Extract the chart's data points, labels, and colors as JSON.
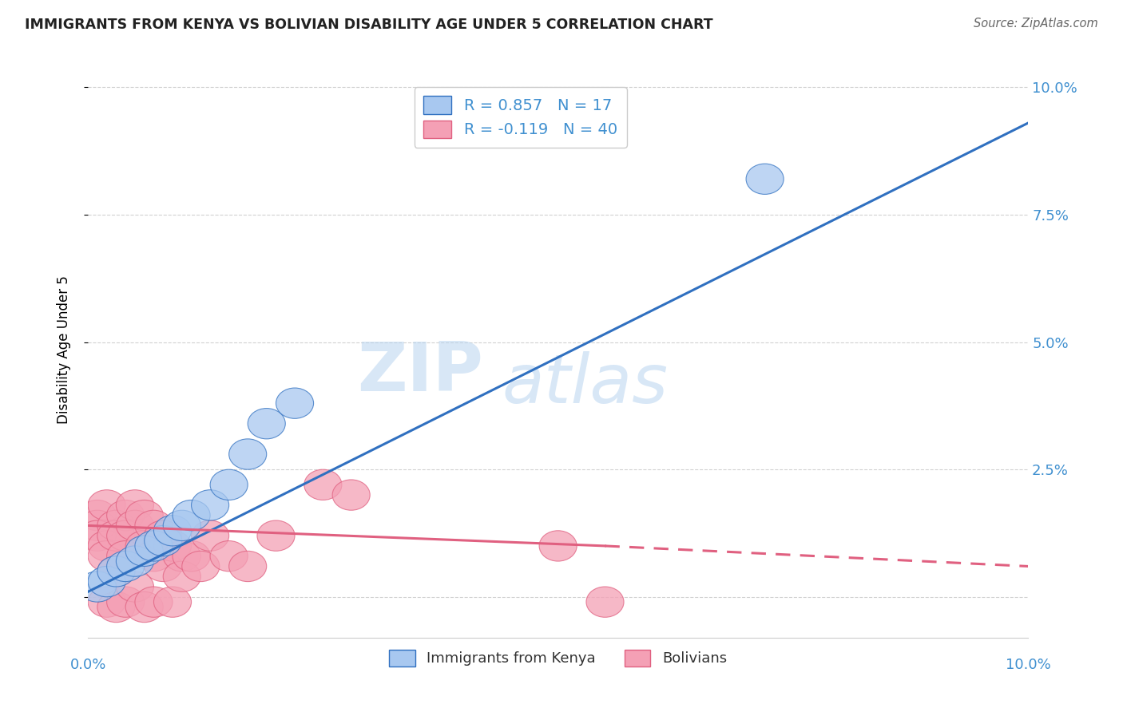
{
  "title": "IMMIGRANTS FROM KENYA VS BOLIVIAN DISABILITY AGE UNDER 5 CORRELATION CHART",
  "source": "Source: ZipAtlas.com",
  "ylabel": "Disability Age Under 5",
  "legend_kenya": "Immigrants from Kenya",
  "legend_bolivia": "Bolivians",
  "r_kenya": 0.857,
  "n_kenya": 17,
  "r_bolivia": -0.119,
  "n_bolivia": 40,
  "xlim": [
    0.0,
    0.1
  ],
  "ylim": [
    -0.008,
    0.105
  ],
  "yticks": [
    0.0,
    0.025,
    0.05,
    0.075,
    0.1
  ],
  "ytick_labels": [
    "",
    "2.5%",
    "5.0%",
    "7.5%",
    "10.0%"
  ],
  "color_kenya": "#A8C8F0",
  "color_bolivia": "#F4A0B5",
  "line_kenya": "#3070C0",
  "line_bolivia": "#E06080",
  "kenya_points": [
    [
      0.001,
      0.002
    ],
    [
      0.002,
      0.003
    ],
    [
      0.003,
      0.005
    ],
    [
      0.004,
      0.006
    ],
    [
      0.005,
      0.007
    ],
    [
      0.006,
      0.009
    ],
    [
      0.007,
      0.01
    ],
    [
      0.008,
      0.011
    ],
    [
      0.009,
      0.013
    ],
    [
      0.01,
      0.014
    ],
    [
      0.011,
      0.016
    ],
    [
      0.013,
      0.018
    ],
    [
      0.015,
      0.022
    ],
    [
      0.017,
      0.028
    ],
    [
      0.019,
      0.034
    ],
    [
      0.022,
      0.038
    ],
    [
      0.072,
      0.082
    ]
  ],
  "bolivia_points": [
    [
      0.001,
      0.016
    ],
    [
      0.001,
      0.014
    ],
    [
      0.001,
      0.012
    ],
    [
      0.002,
      0.018
    ],
    [
      0.002,
      0.01
    ],
    [
      0.002,
      0.008
    ],
    [
      0.002,
      -0.001
    ],
    [
      0.003,
      0.014
    ],
    [
      0.003,
      0.012
    ],
    [
      0.003,
      0.005
    ],
    [
      0.003,
      -0.002
    ],
    [
      0.004,
      0.016
    ],
    [
      0.004,
      0.012
    ],
    [
      0.004,
      0.008
    ],
    [
      0.004,
      -0.001
    ],
    [
      0.005,
      0.018
    ],
    [
      0.005,
      0.014
    ],
    [
      0.005,
      0.002
    ],
    [
      0.006,
      0.016
    ],
    [
      0.006,
      0.01
    ],
    [
      0.006,
      -0.002
    ],
    [
      0.007,
      0.014
    ],
    [
      0.007,
      0.008
    ],
    [
      0.007,
      -0.001
    ],
    [
      0.008,
      0.012
    ],
    [
      0.008,
      0.006
    ],
    [
      0.009,
      0.01
    ],
    [
      0.009,
      -0.001
    ],
    [
      0.01,
      0.008
    ],
    [
      0.01,
      0.004
    ],
    [
      0.011,
      0.008
    ],
    [
      0.012,
      0.006
    ],
    [
      0.013,
      0.012
    ],
    [
      0.015,
      0.008
    ],
    [
      0.017,
      0.006
    ],
    [
      0.02,
      0.012
    ],
    [
      0.025,
      0.022
    ],
    [
      0.028,
      0.02
    ],
    [
      0.05,
      0.01
    ],
    [
      0.055,
      -0.001
    ]
  ],
  "kenya_line": [
    [
      0.0,
      0.001
    ],
    [
      0.1,
      0.093
    ]
  ],
  "bolivia_line_solid": [
    [
      0.0,
      0.014
    ],
    [
      0.055,
      0.01
    ]
  ],
  "bolivia_line_dashed": [
    [
      0.055,
      0.01
    ],
    [
      0.1,
      0.006
    ]
  ],
  "watermark": "ZIPatlas",
  "background_color": "#FFFFFF",
  "grid_color": "#CCCCCC",
  "label_color": "#4090D0"
}
